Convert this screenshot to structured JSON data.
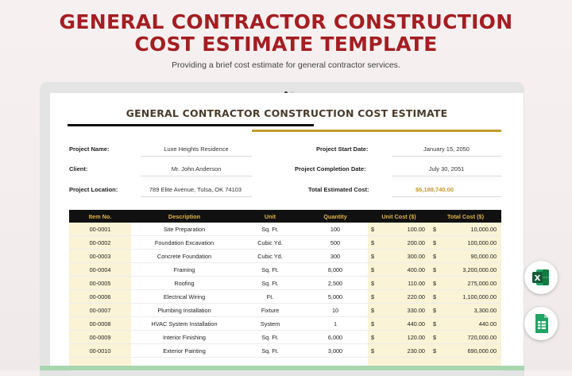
{
  "hero": {
    "title_line1": "GENERAL CONTRACTOR CONSTRUCTION",
    "title_line2": "COST ESTIMATE TEMPLATE",
    "subtitle": "Providing a brief cost estimate for general contractor services."
  },
  "document": {
    "title": "GENERAL CONTRACTOR CONSTRUCTION COST ESTIMATE",
    "project_name_label": "Project Name:",
    "project_name": "Luxe Heights Residence",
    "client_label": "Client:",
    "client": "Mr. John Anderson",
    "location_label": "Project Location:",
    "location": "789 Elite Avenue, Tulsa, OK 74103",
    "start_label": "Project Start Date:",
    "start": "January 15, 2050",
    "completion_label": "Project Completion Date:",
    "completion": "July 30, 2051",
    "total_label": "Total Estimated Cost:",
    "total": "$6,188,740.00"
  },
  "table": {
    "headers": [
      "Item No.",
      "Description",
      "Unit",
      "Quantity",
      "Unit Cost ($)",
      "Total Cost ($)"
    ],
    "currency_symbol": "$",
    "rows": [
      {
        "item": "00-0001",
        "desc": "Site Preparation",
        "unit": "Sq. Ft.",
        "qty": "100",
        "unit_cost": "100.00",
        "total": "10,000.00"
      },
      {
        "item": "00-0002",
        "desc": "Foundation Excavation",
        "unit": "Cubic Yd.",
        "qty": "500",
        "unit_cost": "200.00",
        "total": "100,000.00"
      },
      {
        "item": "00-0003",
        "desc": "Concrete Foundation",
        "unit": "Cubic Yd.",
        "qty": "300",
        "unit_cost": "300.00",
        "total": "90,000.00"
      },
      {
        "item": "00-0004",
        "desc": "Framing",
        "unit": "Sq. Ft.",
        "qty": "8,000",
        "unit_cost": "400.00",
        "total": "3,200,000.00"
      },
      {
        "item": "00-0005",
        "desc": "Roofing",
        "unit": "Sq. Ft.",
        "qty": "2,500",
        "unit_cost": "110.00",
        "total": "275,000.00"
      },
      {
        "item": "00-0006",
        "desc": "Electrical Wiring",
        "unit": "Ft.",
        "qty": "5,000",
        "unit_cost": "220.00",
        "total": "1,100,000.00"
      },
      {
        "item": "00-0007",
        "desc": "Plumbing Installation",
        "unit": "Fixture",
        "qty": "10",
        "unit_cost": "330.00",
        "total": "3,300.00"
      },
      {
        "item": "00-0008",
        "desc": "HVAC System Installation",
        "unit": "System",
        "qty": "1",
        "unit_cost": "440.00",
        "total": "440.00"
      },
      {
        "item": "00-0009",
        "desc": "Interior Finishing",
        "unit": "Sq. Ft.",
        "qty": "6,000",
        "unit_cost": "120.00",
        "total": "720,000.00"
      },
      {
        "item": "00-0010",
        "desc": "Exterior Painting",
        "unit": "Sq. Ft.",
        "qty": "3,000",
        "unit_cost": "230.00",
        "total": "690,000.00"
      }
    ]
  },
  "icons": {
    "excel": "excel-icon",
    "sheets": "google-sheets-icon"
  },
  "colors": {
    "title_red": "#a41e22",
    "accent_gold": "#c49a2c",
    "header_black": "#111111",
    "header_text_gold": "#e0b34a",
    "cell_cream": "#fbf3d6",
    "excel_green": "#1f7a45",
    "sheets_green": "#1fa463"
  }
}
